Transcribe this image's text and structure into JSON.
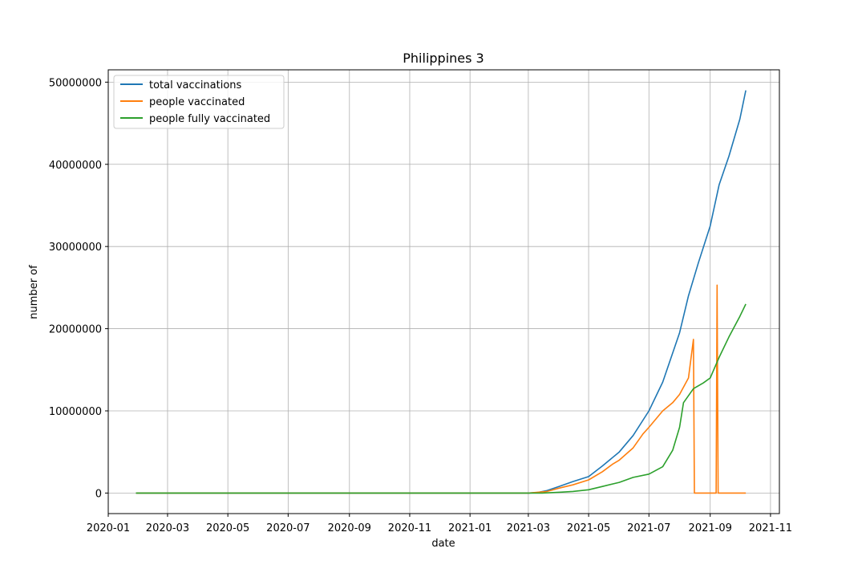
{
  "chart_data": {
    "type": "line",
    "title": "Philippines 3",
    "xlabel": "date",
    "ylabel": "number of",
    "grid": true,
    "legend_position": "top-left",
    "xlim": [
      "2020-01-01",
      "2021-11-10"
    ],
    "ylim": [
      -2500000,
      51500000
    ],
    "x_ticks": [
      "2020-01",
      "2020-03",
      "2020-05",
      "2020-07",
      "2020-09",
      "2020-11",
      "2021-01",
      "2021-03",
      "2021-05",
      "2021-07",
      "2021-09",
      "2021-11"
    ],
    "y_ticks": [
      0,
      10000000,
      20000000,
      30000000,
      40000000,
      50000000
    ],
    "series": [
      {
        "name": "total vaccinations",
        "color": "#1f77b4",
        "points": [
          [
            "2020-01-29",
            0
          ],
          [
            "2021-03-01",
            0
          ],
          [
            "2021-03-10",
            60000
          ],
          [
            "2021-03-20",
            300000
          ],
          [
            "2021-04-01",
            800000
          ],
          [
            "2021-04-15",
            1400000
          ],
          [
            "2021-05-01",
            2000000
          ],
          [
            "2021-05-15",
            3300000
          ],
          [
            "2021-06-01",
            5000000
          ],
          [
            "2021-06-15",
            7000000
          ],
          [
            "2021-07-01",
            10000000
          ],
          [
            "2021-07-15",
            13500000
          ],
          [
            "2021-08-01",
            19500000
          ],
          [
            "2021-08-10",
            24000000
          ],
          [
            "2021-08-20",
            28000000
          ],
          [
            "2021-09-01",
            32500000
          ],
          [
            "2021-09-10",
            37500000
          ],
          [
            "2021-09-20",
            41000000
          ],
          [
            "2021-10-01",
            45500000
          ],
          [
            "2021-10-07",
            49000000
          ]
        ]
      },
      {
        "name": "people vaccinated",
        "color": "#ff7f0e",
        "points": [
          [
            "2020-01-29",
            0
          ],
          [
            "2021-03-01",
            0
          ],
          [
            "2021-03-20",
            200000
          ],
          [
            "2021-04-01",
            600000
          ],
          [
            "2021-04-15",
            1000000
          ],
          [
            "2021-05-01",
            1600000
          ],
          [
            "2021-05-15",
            2600000
          ],
          [
            "2021-05-25",
            3500000
          ],
          [
            "2021-06-01",
            4000000
          ],
          [
            "2021-06-15",
            5500000
          ],
          [
            "2021-06-25",
            7200000
          ],
          [
            "2021-07-01",
            8000000
          ],
          [
            "2021-07-15",
            10000000
          ],
          [
            "2021-07-25",
            11000000
          ],
          [
            "2021-08-01",
            12000000
          ],
          [
            "2021-08-10",
            14000000
          ],
          [
            "2021-08-15",
            18700000
          ],
          [
            "2021-08-16",
            0
          ],
          [
            "2021-09-07",
            0
          ],
          [
            "2021-09-08",
            25300000
          ],
          [
            "2021-09-09",
            0
          ],
          [
            "2021-10-07",
            0
          ]
        ]
      },
      {
        "name": "people fully vaccinated",
        "color": "#2ca02c",
        "points": [
          [
            "2020-01-29",
            0
          ],
          [
            "2021-03-15",
            0
          ],
          [
            "2021-04-01",
            100000
          ],
          [
            "2021-04-15",
            200000
          ],
          [
            "2021-05-01",
            400000
          ],
          [
            "2021-05-15",
            800000
          ],
          [
            "2021-06-01",
            1300000
          ],
          [
            "2021-06-15",
            1900000
          ],
          [
            "2021-07-01",
            2300000
          ],
          [
            "2021-07-15",
            3200000
          ],
          [
            "2021-07-25",
            5200000
          ],
          [
            "2021-08-01",
            8000000
          ],
          [
            "2021-08-05",
            11000000
          ],
          [
            "2021-08-15",
            12700000
          ],
          [
            "2021-08-25",
            13400000
          ],
          [
            "2021-09-01",
            14000000
          ],
          [
            "2021-09-10",
            16500000
          ],
          [
            "2021-09-20",
            19000000
          ],
          [
            "2021-10-01",
            21500000
          ],
          [
            "2021-10-07",
            23000000
          ]
        ]
      }
    ]
  }
}
